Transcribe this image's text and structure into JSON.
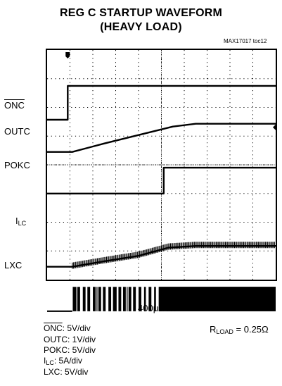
{
  "title_line1": "REG C STARTUP WAVEFORM",
  "title_line2": "(HEAVY LOAD)",
  "figure_id": "MAX17017 toc12",
  "channel_labels": {
    "onc": "ONC",
    "outc": "OUTC",
    "pokc": "POKC",
    "ilc_main": "I",
    "ilc_sub": "LC",
    "lxc": "LXC"
  },
  "timebase": "400μs/div",
  "scales": {
    "onc_label": "ONC",
    "onc_value": ": 5V/div",
    "outc": "OUTC: 1V/div",
    "pokc": "POKC: 5V/div",
    "ilc_main": "I",
    "ilc_sub": "LC",
    "ilc_value": ": 5A/div",
    "lxc": "LXC: 5V/div"
  },
  "rload": {
    "main": "R",
    "sub": "LOAD",
    "value": " = 0.25Ω"
  },
  "chart_data": {
    "type": "line",
    "x_unit": "div",
    "x_range": [
      0,
      10
    ],
    "y_divisions": 8,
    "grid": true,
    "series": [
      {
        "name": "ONC",
        "x": [
          0,
          0.9,
          0.9,
          10
        ],
        "y": [
          0,
          0,
          5,
          5
        ],
        "scale": "5V/div"
      },
      {
        "name": "OUTC",
        "x": [
          0,
          1.1,
          2.5,
          4.0,
          5.5,
          6.5,
          10
        ],
        "y": [
          0,
          0,
          0.3,
          0.6,
          0.9,
          1.0,
          1.0
        ],
        "scale": "1V/div"
      },
      {
        "name": "POKC",
        "x": [
          0,
          5.1,
          5.1,
          10
        ],
        "y": [
          0,
          0,
          5,
          5
        ],
        "scale": "5V/div"
      },
      {
        "name": "ILC",
        "x": [
          0,
          1.1,
          2.5,
          4.0,
          5.3,
          6.5,
          10
        ],
        "y": [
          0,
          0,
          1.0,
          2.0,
          3.5,
          3.8,
          3.8
        ],
        "scale": "5A/div"
      },
      {
        "name": "LXC",
        "x": [
          0,
          1.1,
          1.1,
          10
        ],
        "y": [
          0,
          0,
          5,
          5
        ],
        "scale": "5V/div"
      }
    ]
  }
}
